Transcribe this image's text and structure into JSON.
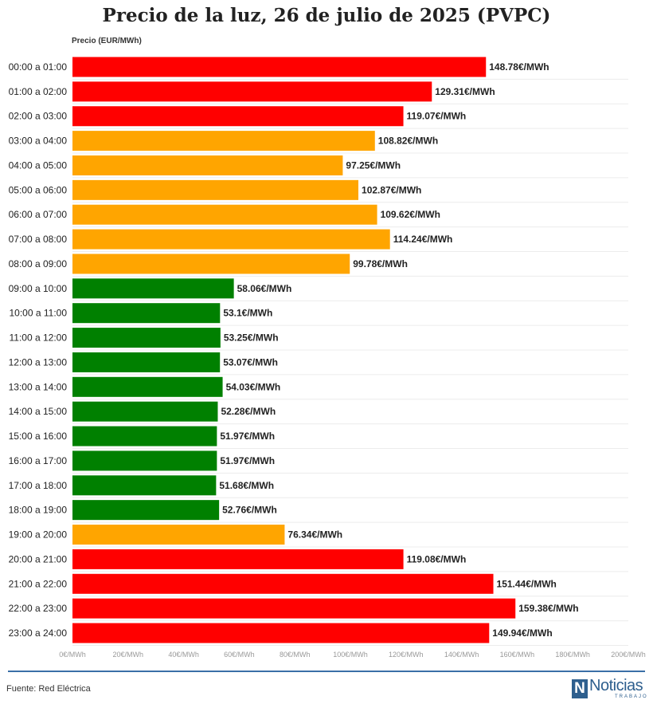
{
  "chart_data": {
    "type": "bar",
    "orientation": "horizontal",
    "title": "Precio de la luz, 26 de julio de 2025 (PVPC)",
    "ylabel": "Precio (EUR/MWh)",
    "xlim": [
      0,
      200
    ],
    "xticks": [
      0,
      20,
      40,
      60,
      80,
      100,
      120,
      140,
      160,
      180,
      200
    ],
    "xtick_suffix": "€/MWh",
    "value_suffix": "€/MWh",
    "grid": true,
    "categories": [
      "00:00 a 01:00",
      "01:00 a 02:00",
      "02:00 a 03:00",
      "03:00 a 04:00",
      "04:00 a 05:00",
      "05:00 a 06:00",
      "06:00 a 07:00",
      "07:00 a 08:00",
      "08:00 a 09:00",
      "09:00 a 10:00",
      "10:00 a 11:00",
      "11:00 a 12:00",
      "12:00 a 13:00",
      "13:00 a 14:00",
      "14:00 a 15:00",
      "15:00 a 16:00",
      "16:00 a 17:00",
      "17:00 a 18:00",
      "18:00 a 19:00",
      "19:00 a 20:00",
      "20:00 a 21:00",
      "21:00 a 22:00",
      "22:00 a 23:00",
      "23:00 a 24:00"
    ],
    "values": [
      148.78,
      129.31,
      119.07,
      108.82,
      97.25,
      102.87,
      109.62,
      114.24,
      99.78,
      58.06,
      53.1,
      53.25,
      53.07,
      54.03,
      52.28,
      51.97,
      51.97,
      51.68,
      52.76,
      76.34,
      119.08,
      151.44,
      159.38,
      149.94
    ],
    "value_labels": [
      "148.78€/MWh",
      "129.31€/MWh",
      "119.07€/MWh",
      "108.82€/MWh",
      "97.25€/MWh",
      "102.87€/MWh",
      "109.62€/MWh",
      "114.24€/MWh",
      "99.78€/MWh",
      "58.06€/MWh",
      "53.1€/MWh",
      "53.25€/MWh",
      "53.07€/MWh",
      "54.03€/MWh",
      "52.28€/MWh",
      "51.97€/MWh",
      "51.97€/MWh",
      "51.68€/MWh",
      "52.76€/MWh",
      "76.34€/MWh",
      "119.08€/MWh",
      "151.44€/MWh",
      "159.38€/MWh",
      "149.94€/MWh"
    ],
    "bar_levels": [
      "high",
      "high",
      "high",
      "mid",
      "mid",
      "mid",
      "mid",
      "mid",
      "mid",
      "low",
      "low",
      "low",
      "low",
      "low",
      "low",
      "low",
      "low",
      "low",
      "low",
      "mid",
      "high",
      "high",
      "high",
      "high"
    ],
    "level_colors": {
      "high": "#ff0000",
      "mid": "#ffa500",
      "low": "#008000"
    }
  },
  "footer": {
    "source": "Fuente: Red Eléctrica",
    "logo_brand": "Noticias",
    "logo_sub": "TRABAJO",
    "logo_mark": "N",
    "logo_color": "#2e5f8e"
  }
}
